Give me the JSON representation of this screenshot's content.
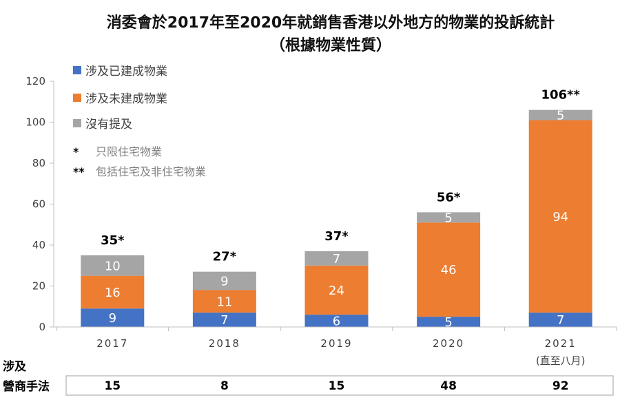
{
  "chart_data": {
    "type": "bar",
    "stacked": true,
    "title": "消委會於2017年至2020年就銷售香港以外地方的物業的投訴統計",
    "subtitle": "（根據物業性質）",
    "categories": [
      "2017",
      "2018",
      "2019",
      "2020",
      "2021"
    ],
    "category_sublabels": [
      "",
      "",
      "",
      "",
      "(直至八月)"
    ],
    "series": [
      {
        "name": "涉及已建成物業",
        "color": "#4472C4",
        "values": [
          9,
          7,
          6,
          5,
          7
        ]
      },
      {
        "name": "涉及未建成物業",
        "color": "#ED7D31",
        "values": [
          16,
          11,
          24,
          46,
          94
        ]
      },
      {
        "name": "沒有提及",
        "color": "#A5A5A5",
        "values": [
          10,
          9,
          7,
          5,
          5
        ]
      }
    ],
    "totals": [
      "35*",
      "27*",
      "37*",
      "56*",
      "106**"
    ],
    "ylim": [
      0,
      120
    ],
    "yticks": [
      0,
      20,
      40,
      60,
      80,
      100,
      120
    ],
    "legend_position": "top-left",
    "notes": [
      {
        "mark": "*",
        "text": "只限住宅物業"
      },
      {
        "mark": "**",
        "text": "包括住宅及非住宅物業"
      }
    ],
    "extra_row": {
      "header": [
        "涉及",
        "營商手法"
      ],
      "values": [
        "15",
        "8",
        "15",
        "48",
        "92"
      ]
    }
  }
}
